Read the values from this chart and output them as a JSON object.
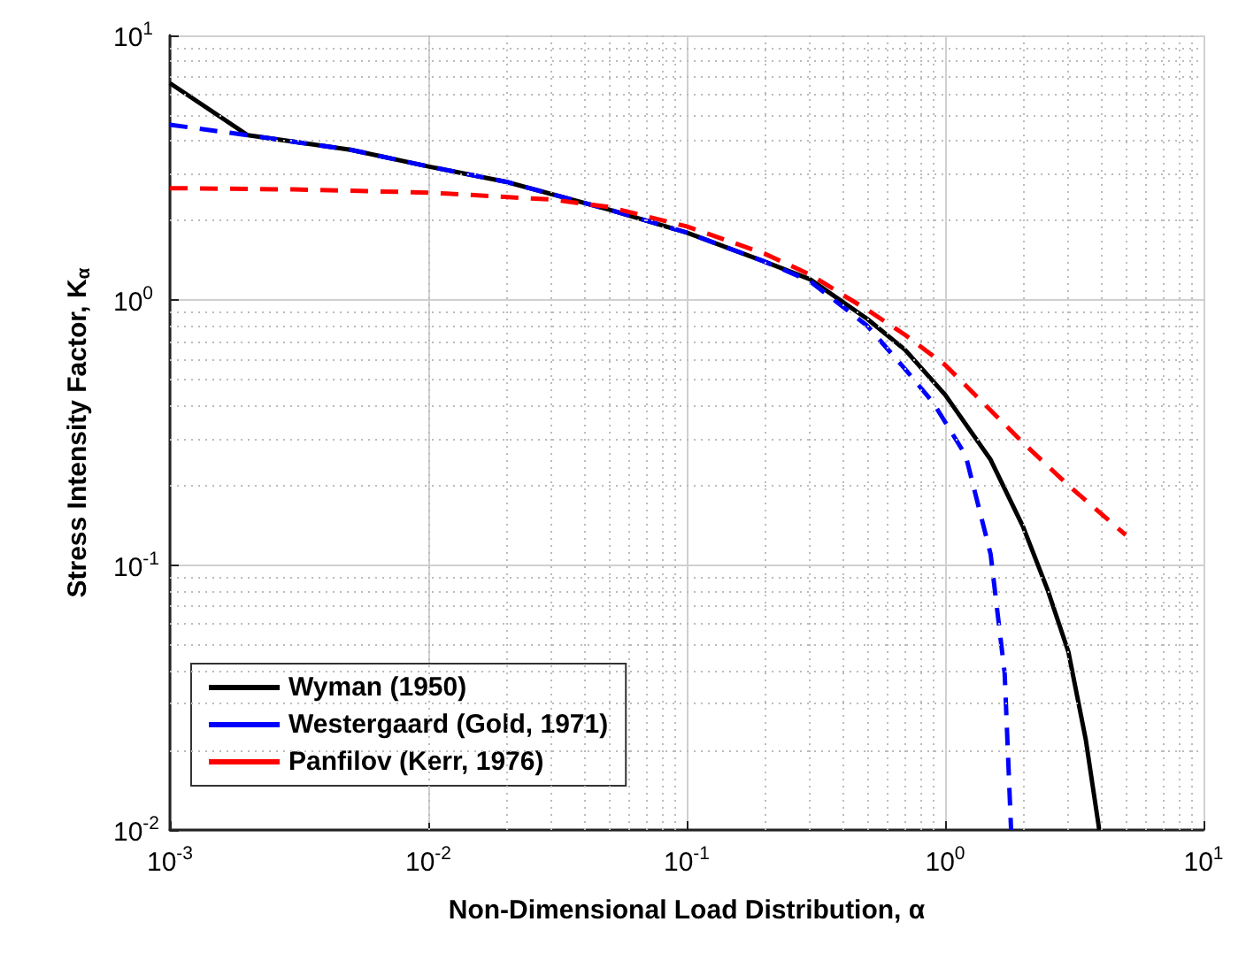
{
  "chart_data": {
    "type": "line",
    "xlabel": "Non-Dimensional Load Distribution, α",
    "ylabel": "Stress Intensity Factor, K$_{α}$",
    "log": "xy",
    "xlim": [
      0.001,
      10
    ],
    "ylim": [
      0.01,
      10
    ],
    "xticks": [
      {
        "value": 0.001,
        "label": "10$^{-3}$"
      },
      {
        "value": 0.01,
        "label": "10$^{-2}$"
      },
      {
        "value": 0.1,
        "label": "10$^{-1}$"
      },
      {
        "value": 1,
        "label": "10$^{0}$"
      },
      {
        "value": 10,
        "label": "10$^{1}$"
      }
    ],
    "yticks": [
      {
        "value": 0.01,
        "label": "10$^{-2}$"
      },
      {
        "value": 0.1,
        "label": "10$^{-1}$"
      },
      {
        "value": 1,
        "label": "10$^{0}$"
      },
      {
        "value": 10,
        "label": "10$^{1}$"
      }
    ],
    "grid": true,
    "legend": "bottom left",
    "marker": "none",
    "series": [
      {
        "name": "Wyman (1950)",
        "color": "#000000",
        "line_style": "solid",
        "x": [
          0.001,
          0.002,
          0.005,
          0.01,
          0.02,
          0.05,
          0.1,
          0.2,
          0.3,
          0.5,
          0.7,
          1,
          1.5,
          2,
          2.5,
          3,
          3.5,
          3.95
        ],
        "values": [
          6.6,
          4.2,
          3.7,
          3.2,
          2.8,
          2.2,
          1.8,
          1.4,
          1.2,
          0.85,
          0.65,
          0.44,
          0.25,
          0.14,
          0.08,
          0.047,
          0.022,
          0.01
        ]
      },
      {
        "name": "Westergaard (Gold, 1971)",
        "color": "#0000ff",
        "line_style": "dashed",
        "x": [
          0.001,
          0.002,
          0.005,
          0.01,
          0.02,
          0.05,
          0.1,
          0.2,
          0.3,
          0.5,
          0.7,
          0.9,
          1.2,
          1.5,
          1.7,
          1.8
        ],
        "values": [
          4.6,
          4.2,
          3.7,
          3.2,
          2.8,
          2.2,
          1.8,
          1.4,
          1.18,
          0.8,
          0.55,
          0.41,
          0.26,
          0.11,
          0.039,
          0.01
        ]
      },
      {
        "name": "Panfilov (Kerr, 1976)",
        "color": "#ff0000",
        "line_style": "dashed",
        "x": [
          0.001,
          0.003,
          0.01,
          0.03,
          0.05,
          0.1,
          0.2,
          0.3,
          0.5,
          0.7,
          1,
          2,
          3,
          5
        ],
        "values": [
          2.65,
          2.62,
          2.55,
          2.4,
          2.25,
          1.9,
          1.5,
          1.25,
          0.92,
          0.74,
          0.57,
          0.29,
          0.2,
          0.13
        ]
      }
    ]
  }
}
